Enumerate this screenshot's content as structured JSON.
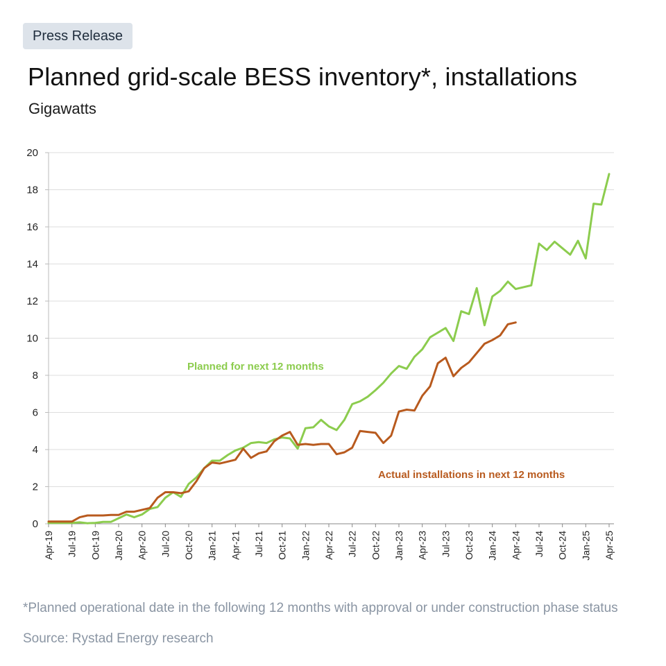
{
  "header": {
    "badge": "Press Release",
    "title": "Planned grid-scale BESS inventory*, installations",
    "subtitle": "Gigawatts"
  },
  "footer": {
    "footnote": "*Planned operational date in the following 12 months with approval or under construction phase status",
    "source": "Source: Rystad Energy research"
  },
  "colors": {
    "planned": "#8ccc4e",
    "actual": "#b85a1e",
    "grid": "#dddddd",
    "axis_text": "#222222"
  },
  "chart_data": {
    "type": "line",
    "title": "Planned grid-scale BESS inventory*, installations",
    "ylabel": "Gigawatts",
    "ylim": [
      0,
      20
    ],
    "yticks": [
      0,
      2,
      4,
      6,
      8,
      10,
      12,
      14,
      16,
      18,
      20
    ],
    "grid": true,
    "x_start": "Apr-19",
    "x_tick_labels": [
      "Apr-19",
      "Jul-19",
      "Oct-19",
      "Jan-20",
      "Apr-20",
      "Jul-20",
      "Oct-20",
      "Jan-21",
      "Apr-21",
      "Jul-21",
      "Oct-21",
      "Jan-22",
      "Apr-22",
      "Jul-22",
      "Oct-22",
      "Jan-23",
      "Apr-23",
      "Jul-23",
      "Oct-23",
      "Jan-24",
      "Apr-24",
      "Jul-24",
      "Oct-24",
      "Jan-25",
      "Apr-25"
    ],
    "series": [
      {
        "name": "Planned for next 12 months",
        "color": "#8ccc4e",
        "values": [
          0.05,
          0.05,
          0.05,
          0.05,
          0.08,
          0.03,
          0.05,
          0.1,
          0.1,
          0.3,
          0.5,
          0.35,
          0.5,
          0.8,
          0.9,
          1.4,
          1.7,
          1.45,
          2.15,
          2.5,
          3.0,
          3.4,
          3.4,
          3.7,
          3.95,
          4.1,
          4.35,
          4.4,
          4.35,
          4.55,
          4.65,
          4.6,
          4.05,
          5.15,
          5.2,
          5.6,
          5.25,
          5.05,
          5.6,
          6.45,
          6.6,
          6.85,
          7.2,
          7.6,
          8.1,
          8.5,
          8.35,
          9.0,
          9.4,
          10.05,
          10.3,
          10.55,
          9.85,
          11.45,
          11.3,
          12.7,
          10.7,
          12.25,
          12.55,
          13.05,
          12.65,
          12.75,
          12.85,
          15.1,
          14.75,
          15.2,
          14.85,
          14.5,
          15.25,
          14.3,
          17.25,
          17.2,
          18.85
        ]
      },
      {
        "name": "Actual installations in next 12 months",
        "color": "#b85a1e",
        "values": [
          0.12,
          0.12,
          0.12,
          0.12,
          0.35,
          0.45,
          0.45,
          0.45,
          0.48,
          0.48,
          0.65,
          0.65,
          0.75,
          0.85,
          1.4,
          1.7,
          1.7,
          1.65,
          1.75,
          2.3,
          3.0,
          3.3,
          3.25,
          3.35,
          3.45,
          4.05,
          3.55,
          3.8,
          3.9,
          4.45,
          4.75,
          4.95,
          4.25,
          4.3,
          4.25,
          4.3,
          4.3,
          3.75,
          3.85,
          4.1,
          5.0,
          4.95,
          4.9,
          4.35,
          4.75,
          6.05,
          6.15,
          6.1,
          6.9,
          7.4,
          8.65,
          8.95,
          7.95,
          8.4,
          8.7,
          9.2,
          9.7,
          9.9,
          10.15,
          10.75,
          10.85
        ]
      }
    ],
    "annotations": [
      {
        "text": "Planned for next 12 months",
        "series": 0
      },
      {
        "text": "Actual installations in next 12 months",
        "series": 1
      }
    ]
  }
}
